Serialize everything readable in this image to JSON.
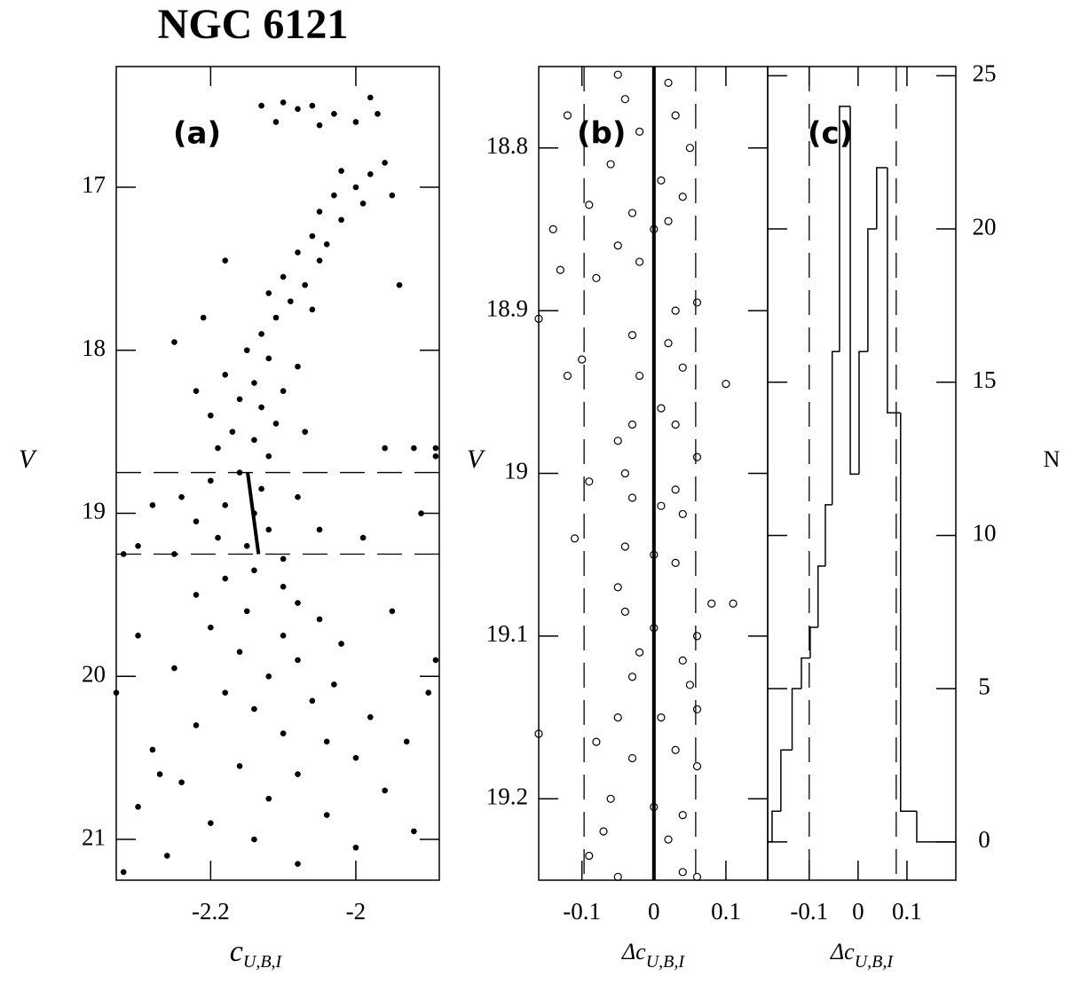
{
  "title": "NGC 6121",
  "chart_data": [
    {
      "type": "scatter",
      "label": "(a)",
      "ylabel": "V",
      "xlabel": "c",
      "xlabel_sub": "U,B,I",
      "xlim": [
        -2.33,
        -1.885
      ],
      "ylim": [
        21.25,
        16.26
      ],
      "xticks": [
        -2.2,
        -2
      ],
      "yticks": [
        17,
        18,
        19,
        20,
        21
      ],
      "hlines": [
        18.75,
        19.25
      ],
      "fiducial": {
        "x": [
          -2.149,
          -2.134
        ],
        "values": [
          18.75,
          19.25
        ]
      },
      "x": [
        -2.13,
        -2.1,
        -2.08,
        -2.06,
        -2.03,
        -2.0,
        -1.98,
        -2.05,
        -2.11,
        -1.97,
        -2.02,
        -1.98,
        -1.96,
        -2.0,
        -2.03,
        -1.99,
        -2.05,
        -2.02,
        -2.06,
        -2.04,
        -2.08,
        -2.05,
        -2.1,
        -2.07,
        -2.12,
        -2.09,
        -2.11,
        -2.06,
        -2.13,
        -1.95,
        -2.18,
        -1.94,
        -2.15,
        -2.12,
        -2.18,
        -2.14,
        -2.1,
        -2.16,
        -2.13,
        -2.2,
        -2.11,
        -2.17,
        -2.14,
        -2.19,
        -2.12,
        -2.21,
        -2.25,
        -2.08,
        -2.22,
        -2.07,
        -1.96,
        -1.92,
        -1.89,
        -2.16,
        -2.2,
        -2.13,
        -2.24,
        -2.18,
        -2.14,
        -2.22,
        -2.12,
        -2.19,
        -2.15,
        -2.25,
        -2.1,
        -2.28,
        -2.08,
        -2.3,
        -2.05,
        -2.32,
        -1.99,
        -1.91,
        -1.89,
        -2.14,
        -2.18,
        -2.1,
        -2.22,
        -2.08,
        -2.15,
        -2.05,
        -2.2,
        -2.1,
        -2.02,
        -2.16,
        -2.08,
        -2.25,
        -2.12,
        -2.03,
        -2.18,
        -2.06,
        -2.14,
        -1.98,
        -2.22,
        -2.1,
        -2.04,
        -2.28,
        -2.0,
        -2.16,
        -2.08,
        -2.24,
        -1.96,
        -2.12,
        -2.3,
        -2.04,
        -2.2,
        -1.92,
        -2.14,
        -2.0,
        -2.26,
        -2.08,
        -2.32,
        -1.9,
        -1.89,
        -2.33,
        -2.3,
        -1.95,
        -2.27,
        -1.93
      ],
      "values": [
        16.5,
        16.48,
        16.52,
        16.5,
        16.55,
        16.6,
        16.45,
        16.62,
        16.6,
        16.55,
        16.9,
        16.92,
        16.85,
        17.0,
        17.05,
        17.1,
        17.15,
        17.2,
        17.3,
        17.35,
        17.4,
        17.45,
        17.55,
        17.6,
        17.65,
        17.7,
        17.8,
        17.75,
        17.9,
        17.05,
        17.45,
        17.6,
        18.0,
        18.05,
        18.15,
        18.2,
        18.25,
        18.3,
        18.35,
        18.4,
        18.45,
        18.5,
        18.55,
        18.6,
        18.65,
        17.8,
        17.95,
        18.1,
        18.25,
        18.5,
        18.6,
        18.6,
        18.6,
        18.75,
        18.8,
        18.85,
        18.9,
        18.95,
        19.0,
        19.05,
        19.1,
        19.15,
        19.2,
        19.25,
        19.28,
        18.95,
        18.9,
        19.2,
        19.1,
        19.25,
        19.15,
        19.0,
        18.65,
        19.35,
        19.4,
        19.45,
        19.5,
        19.55,
        19.6,
        19.65,
        19.7,
        19.75,
        19.8,
        19.85,
        19.9,
        19.95,
        20.0,
        20.05,
        20.1,
        20.15,
        20.2,
        20.25,
        20.3,
        20.35,
        20.4,
        20.45,
        20.5,
        20.55,
        20.6,
        20.65,
        20.7,
        20.75,
        20.8,
        20.85,
        20.9,
        20.95,
        21.0,
        21.05,
        21.1,
        21.15,
        21.2,
        20.1,
        19.9,
        20.1,
        19.75,
        19.6,
        20.6,
        20.4
      ]
    },
    {
      "type": "scatter-open",
      "label": "(b)",
      "ylabel": "V",
      "xlabel": "Δc",
      "xlabel_sub": "U,B,I",
      "xlim": [
        -0.16,
        0.158
      ],
      "ylim": [
        19.25,
        18.75
      ],
      "xticks": [
        -0.1,
        0,
        0.1
      ],
      "yticks": [
        18.8,
        18.9,
        19,
        19.1,
        19.2
      ],
      "vlines": [
        -0.097,
        0.058
      ],
      "zero_line": 0,
      "x": [
        -0.05,
        0.02,
        -0.04,
        0.03,
        -0.12,
        -0.02,
        0.05,
        -0.06,
        0.01,
        0.04,
        -0.09,
        -0.03,
        0.02,
        -0.14,
        0,
        -0.05,
        -0.02,
        -0.13,
        -0.08,
        0.03,
        0.06,
        -0.16,
        -0.03,
        0.02,
        -0.1,
        -0.12,
        0.04,
        0.1,
        -0.02,
        0.01,
        -0.03,
        0.03,
        -0.05,
        0.06,
        -0.04,
        0.03,
        -0.09,
        -0.03,
        0.01,
        0.04,
        -0.11,
        -0.04,
        0,
        0.03,
        -0.05,
        0.08,
        0.11,
        -0.04,
        0,
        0.06,
        -0.02,
        0.04,
        -0.03,
        0.05,
        -0.05,
        0.01,
        0.06,
        -0.16,
        -0.08,
        0.03,
        -0.03,
        0.06,
        -0.06,
        0,
        0.04,
        -0.07,
        0.02,
        -0.09,
        0.04,
        -0.05,
        0.06
      ],
      "values": [
        18.755,
        18.76,
        18.77,
        18.78,
        18.78,
        18.79,
        18.8,
        18.81,
        18.82,
        18.83,
        18.835,
        18.84,
        18.845,
        18.85,
        18.85,
        18.86,
        18.87,
        18.875,
        18.88,
        18.9,
        18.895,
        18.905,
        18.915,
        18.92,
        18.93,
        18.94,
        18.935,
        18.945,
        18.94,
        18.96,
        18.97,
        18.97,
        18.98,
        18.99,
        19.0,
        19.01,
        19.005,
        19.015,
        19.02,
        19.025,
        19.04,
        19.045,
        19.05,
        19.055,
        19.07,
        19.08,
        19.08,
        19.085,
        19.095,
        19.1,
        19.11,
        19.115,
        19.125,
        19.13,
        19.15,
        19.15,
        19.145,
        19.16,
        19.165,
        19.17,
        19.175,
        19.18,
        19.2,
        19.205,
        19.21,
        19.22,
        19.225,
        19.235,
        19.245,
        19.248,
        19.248
      ]
    },
    {
      "type": "histogram",
      "label": "(c)",
      "ylabel": "N",
      "xlabel": "Δc",
      "xlabel_sub": "U,B,I",
      "xlim": [
        -0.185,
        0.2
      ],
      "ylim": [
        -1.25,
        25.3
      ],
      "xticks": [
        -0.1,
        0,
        0.1
      ],
      "yticks": [
        0,
        5,
        10,
        15,
        20,
        25
      ],
      "vlines": [
        -0.1,
        0.078
      ],
      "bins": [
        -0.185,
        -0.176,
        -0.158,
        -0.135,
        -0.116,
        -0.098,
        -0.082,
        -0.067,
        -0.053,
        -0.038,
        -0.016,
        0.002,
        0.02,
        0.038,
        0.06,
        0.087,
        0.12,
        0.151,
        0.2
      ],
      "values": [
        0,
        1,
        3,
        5,
        6,
        7,
        9,
        11,
        16,
        24,
        12,
        16,
        20,
        22,
        14,
        1,
        0,
        0
      ]
    }
  ]
}
